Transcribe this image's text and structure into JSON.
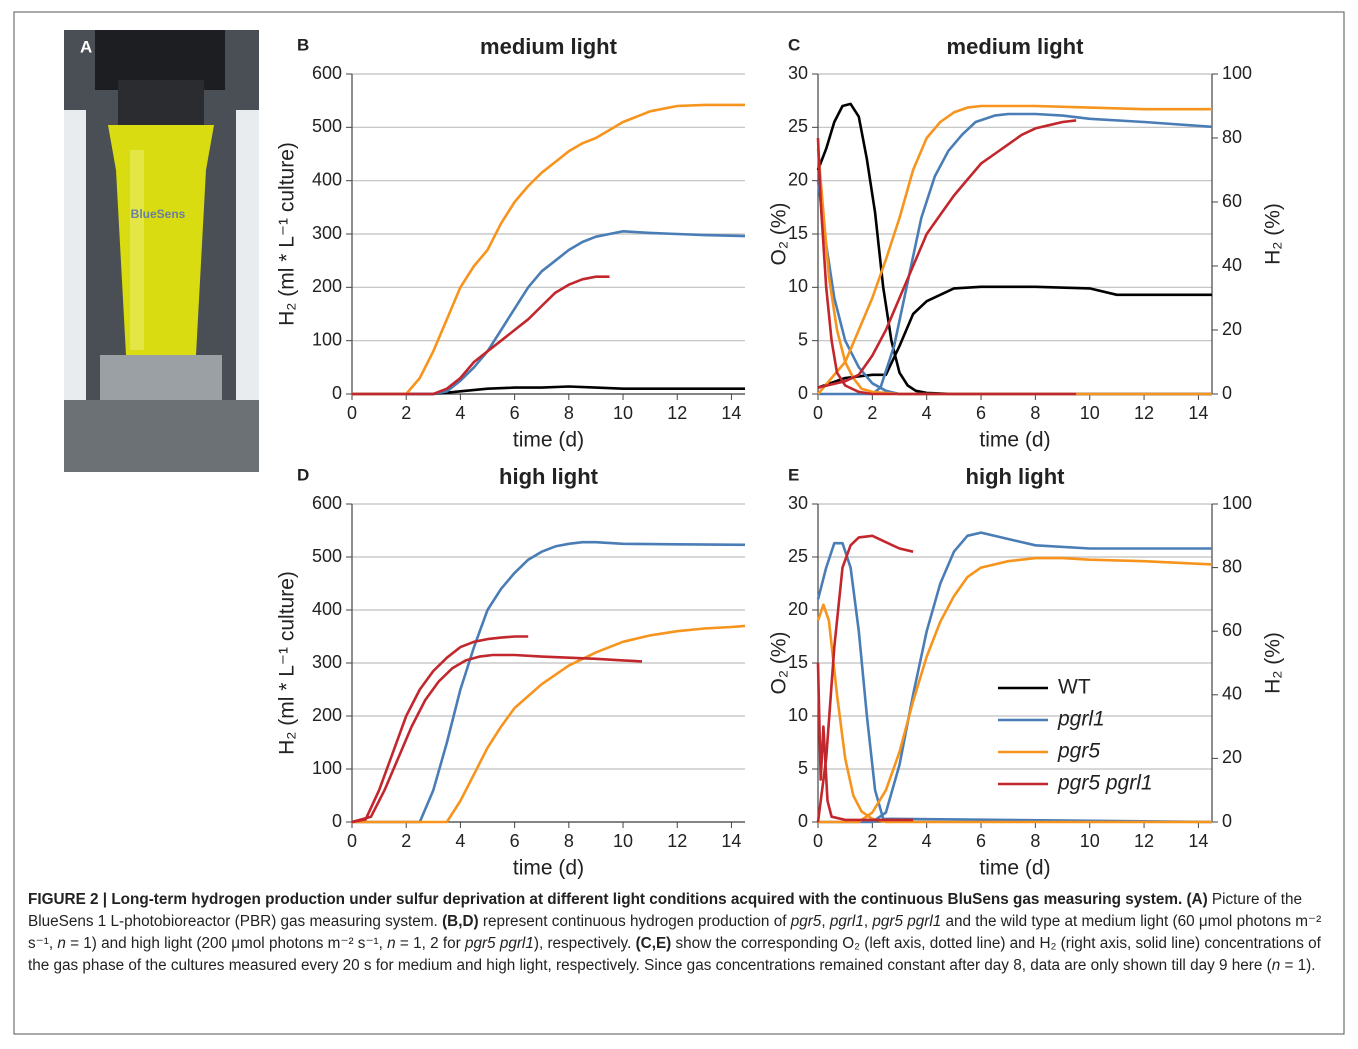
{
  "figure": {
    "panel_a": {
      "label": "A",
      "bottle_text": "BlueSens"
    },
    "caption": [
      {
        "text": "FIGURE 2 | Long-term hydrogen production under sulfur deprivation at different light conditions acquired with the continuous BluSens gas measuring system. (A)",
        "style": "bold"
      },
      {
        "text": " Picture of the BlueSens 1 L-photobioreactor (PBR) gas measuring system. ",
        "style": "normal"
      },
      {
        "text": "(B,D)",
        "style": "bold"
      },
      {
        "text": " represent continuous hydrogen production of ",
        "style": "normal"
      },
      {
        "text": "pgr5",
        "style": "italic"
      },
      {
        "text": ", ",
        "style": "normal"
      },
      {
        "text": "pgrl1",
        "style": "italic"
      },
      {
        "text": ", ",
        "style": "normal"
      },
      {
        "text": "pgr5 pgrl1",
        "style": "italic"
      },
      {
        "text": " and the wild type at medium light (60 μmol photons m⁻² s⁻¹, ",
        "style": "normal"
      },
      {
        "text": "n",
        "style": "italic"
      },
      {
        "text": " = 1) and high light (200 μmol photons m⁻² s⁻¹, ",
        "style": "normal"
      },
      {
        "text": "n",
        "style": "italic"
      },
      {
        "text": " = 1, 2 for ",
        "style": "normal"
      },
      {
        "text": "pgr5 pgrl1",
        "style": "italic"
      },
      {
        "text": "), respectively. ",
        "style": "normal"
      },
      {
        "text": "(C,E)",
        "style": "bold"
      },
      {
        "text": " show the corresponding O₂ (left axis, dotted line) and H₂ (right axis, solid line) concentrations of the gas phase of the cultures measured every 20 s for medium and high light, respectively. Since gas concentrations remained constant after day 8, data are only shown till day 9 here (",
        "style": "normal"
      },
      {
        "text": "n",
        "style": "italic"
      },
      {
        "text": " = 1).",
        "style": "normal"
      }
    ]
  },
  "chart_data": [
    {
      "type": "line",
      "panel_label": "B",
      "title": "medium light",
      "xlabel": "time (d)",
      "ylabel": "H₂ (ml * L⁻¹ culture)",
      "xlim": [
        0,
        14.5
      ],
      "xticks": [
        0,
        2,
        4,
        6,
        8,
        10,
        12,
        14
      ],
      "ylim": [
        0,
        600
      ],
      "yticks": [
        0,
        100,
        200,
        300,
        400,
        500,
        600
      ],
      "grid": true,
      "series": [
        {
          "color": "#000000",
          "x": [
            0,
            3,
            4,
            5,
            6,
            7,
            8,
            9,
            10,
            12,
            14.5
          ],
          "values": [
            0,
            0,
            5,
            10,
            12,
            12,
            14,
            12,
            10,
            10,
            10
          ]
        },
        {
          "color": "#4a7db6",
          "x": [
            0,
            3,
            3.5,
            4,
            4.5,
            5,
            5.5,
            6,
            6.5,
            7,
            7.5,
            8,
            8.5,
            9,
            9.5,
            10,
            11,
            12,
            13,
            14.5
          ],
          "values": [
            0,
            0,
            5,
            25,
            50,
            80,
            120,
            160,
            200,
            230,
            250,
            270,
            285,
            295,
            300,
            305,
            302,
            300,
            298,
            296
          ]
        },
        {
          "color": "#f7941d",
          "x": [
            0,
            2,
            2.5,
            3,
            3.5,
            4,
            4.5,
            5,
            5.5,
            6,
            6.5,
            7,
            7.5,
            8,
            8.5,
            9,
            9.5,
            10,
            10.5,
            11,
            12,
            13,
            14.5
          ],
          "values": [
            0,
            0,
            30,
            80,
            140,
            200,
            240,
            270,
            320,
            360,
            390,
            415,
            435,
            455,
            470,
            480,
            495,
            510,
            520,
            530,
            540,
            542,
            542
          ]
        },
        {
          "color": "#c1272d",
          "x": [
            0,
            3,
            3.5,
            4,
            4.5,
            5,
            5.5,
            6,
            6.5,
            7,
            7.5,
            8,
            8.5,
            9,
            9.5
          ],
          "values": [
            0,
            0,
            10,
            30,
            60,
            80,
            100,
            120,
            140,
            165,
            190,
            205,
            215,
            220,
            220
          ]
        }
      ]
    },
    {
      "type": "line",
      "panel_label": "C",
      "title": "medium light",
      "xlabel": "time (d)",
      "ylabel": "O₂ (%)",
      "y2label": "H₂ (%)",
      "xlim": [
        0,
        14.5
      ],
      "xticks": [
        0,
        2,
        4,
        6,
        8,
        10,
        12,
        14
      ],
      "ylim": [
        0,
        30
      ],
      "yticks": [
        0,
        5,
        10,
        15,
        20,
        25,
        30
      ],
      "y2lim": [
        0,
        100
      ],
      "y2ticks": [
        0,
        20,
        40,
        60,
        80,
        100
      ],
      "grid": true,
      "series": [
        {
          "color": "#000000",
          "x": [
            0,
            0.3,
            0.6,
            0.9,
            1.2,
            1.5,
            1.8,
            2.1,
            2.4,
            2.7,
            3,
            3.3,
            3.6,
            4,
            5,
            14.5
          ],
          "values": [
            21,
            23,
            25.5,
            27,
            27.2,
            26,
            22,
            17,
            10,
            5,
            2,
            0.8,
            0.3,
            0.1,
            0,
            0
          ]
        },
        {
          "color": "#000000",
          "axis": "y2",
          "x": [
            0,
            1,
            2,
            2.5,
            3,
            3.5,
            4,
            5,
            6,
            8,
            10,
            11,
            12,
            14.5
          ],
          "values": [
            2,
            5,
            6,
            6,
            15,
            25,
            29,
            33,
            33.5,
            33.5,
            33,
            31,
            31,
            31
          ]
        },
        {
          "color": "#4a7db6",
          "x": [
            0,
            0.3,
            0.6,
            1,
            1.5,
            2,
            2.5,
            3,
            14.5
          ],
          "values": [
            20,
            14,
            9,
            5,
            2.5,
            1,
            0.3,
            0,
            0
          ]
        },
        {
          "color": "#4a7db6",
          "axis": "y2",
          "x": [
            0,
            1,
            2,
            2.3,
            2.8,
            3.3,
            3.8,
            4.3,
            4.8,
            5.3,
            5.8,
            6.5,
            7,
            8,
            9,
            10,
            12,
            14.5
          ],
          "values": [
            0,
            0,
            0,
            2,
            15,
            35,
            55,
            68,
            76,
            81,
            85,
            87,
            87.5,
            87.5,
            87,
            86,
            85,
            83.5
          ]
        },
        {
          "color": "#f7941d",
          "x": [
            0,
            0.2,
            0.4,
            0.7,
            1,
            1.3,
            1.6,
            2,
            3,
            14.5
          ],
          "values": [
            23,
            17,
            11,
            6,
            3,
            1.5,
            0.5,
            0.2,
            0,
            0
          ]
        },
        {
          "color": "#f7941d",
          "axis": "y2",
          "x": [
            0,
            0.5,
            1,
            1.5,
            2,
            2.5,
            3,
            3.5,
            4,
            4.5,
            5,
            5.5,
            6,
            8,
            10,
            12,
            14.5
          ],
          "values": [
            0,
            5,
            10,
            20,
            30,
            42,
            55,
            70,
            80,
            85,
            88,
            89.5,
            90,
            90,
            89.5,
            89,
            89
          ]
        },
        {
          "color": "#c1272d",
          "x": [
            0,
            0.1,
            0.3,
            0.5,
            0.7,
            1,
            1.5,
            2,
            9.5
          ],
          "values": [
            24,
            18,
            10,
            5,
            2,
            0.8,
            0.2,
            0,
            0
          ]
        },
        {
          "color": "#c1272d",
          "axis": "y2",
          "x": [
            0,
            1,
            1.5,
            2,
            2.5,
            3,
            3.5,
            4,
            4.5,
            5,
            5.5,
            6,
            6.5,
            7,
            7.5,
            8,
            8.5,
            9,
            9.5
          ],
          "values": [
            2,
            4,
            6,
            12,
            20,
            30,
            40,
            50,
            56,
            62,
            67,
            72,
            75,
            78,
            81,
            83,
            84,
            85,
            85.5
          ]
        }
      ]
    },
    {
      "type": "line",
      "panel_label": "D",
      "title": "high light",
      "xlabel": "time (d)",
      "ylabel": "H₂ (ml * L⁻¹ culture)",
      "xlim": [
        0,
        14.5
      ],
      "xticks": [
        0,
        2,
        4,
        6,
        8,
        10,
        12,
        14
      ],
      "ylim": [
        0,
        600
      ],
      "yticks": [
        0,
        100,
        200,
        300,
        400,
        500,
        600
      ],
      "grid": true,
      "series": [
        {
          "color": "#4a7db6",
          "x": [
            0,
            2.5,
            3,
            3.5,
            4,
            4.5,
            5,
            5.5,
            6,
            6.5,
            7,
            7.5,
            8,
            8.5,
            9,
            10,
            12,
            14.5
          ],
          "values": [
            0,
            0,
            60,
            150,
            250,
            330,
            400,
            440,
            470,
            495,
            510,
            520,
            525,
            528,
            528,
            525,
            524,
            523
          ]
        },
        {
          "color": "#f7941d",
          "x": [
            0,
            3.5,
            4,
            4.5,
            5,
            5.5,
            6,
            7,
            8,
            9,
            10,
            11,
            12,
            13,
            14,
            14.5
          ],
          "values": [
            0,
            0,
            40,
            90,
            140,
            180,
            215,
            260,
            295,
            320,
            340,
            352,
            360,
            365,
            368,
            370
          ]
        },
        {
          "color": "#c1272d",
          "x": [
            0,
            0.5,
            1,
            1.5,
            2,
            2.5,
            3,
            3.5,
            4,
            4.5,
            5,
            5.5,
            6,
            6.5
          ],
          "values": [
            0,
            5,
            60,
            130,
            200,
            250,
            285,
            310,
            330,
            340,
            345,
            348,
            350,
            350
          ]
        },
        {
          "color": "#c1272d",
          "x": [
            0,
            0.7,
            1.2,
            1.7,
            2.2,
            2.7,
            3.2,
            3.7,
            4.2,
            4.7,
            5.2,
            6,
            7,
            8,
            9,
            10,
            10.7
          ],
          "values": [
            0,
            10,
            60,
            120,
            180,
            230,
            265,
            290,
            305,
            312,
            315,
            315,
            312,
            310,
            308,
            305,
            303
          ]
        }
      ]
    },
    {
      "type": "line",
      "panel_label": "E",
      "title": "high light",
      "xlabel": "time (d)",
      "ylabel": "O₂ (%)",
      "y2label": "H₂ (%)",
      "xlim": [
        0,
        14.5
      ],
      "xticks": [
        0,
        2,
        4,
        6,
        8,
        10,
        12,
        14
      ],
      "ylim": [
        0,
        30
      ],
      "yticks": [
        0,
        5,
        10,
        15,
        20,
        25,
        30
      ],
      "y2lim": [
        0,
        100
      ],
      "y2ticks": [
        0,
        20,
        40,
        60,
        80,
        100
      ],
      "grid": true,
      "legend": [
        {
          "name": "WT",
          "color": "#000000",
          "style": "normal"
        },
        {
          "name": "pgrl1",
          "color": "#4a7db6",
          "style": "italic"
        },
        {
          "name": "pgr5",
          "color": "#f7941d",
          "style": "italic"
        },
        {
          "name": "pgr5 pgrl1",
          "color": "#c1272d",
          "style": "italic"
        }
      ],
      "series": [
        {
          "color": "#4a7db6",
          "x": [
            0,
            0.3,
            0.6,
            0.9,
            1.2,
            1.5,
            1.8,
            2.1,
            2.4,
            14.5
          ],
          "values": [
            21,
            24,
            26.3,
            26.3,
            24,
            18,
            10,
            3,
            0.3,
            0
          ]
        },
        {
          "color": "#4a7db6",
          "axis": "y2",
          "x": [
            0,
            2,
            2.5,
            3,
            3.5,
            4,
            4.5,
            5,
            5.5,
            6,
            7,
            8,
            10,
            12,
            14.5
          ],
          "values": [
            0,
            0,
            3,
            18,
            40,
            60,
            75,
            85,
            90,
            91,
            89,
            87,
            86,
            86,
            86
          ]
        },
        {
          "color": "#f7941d",
          "x": [
            0,
            0.2,
            0.4,
            0.7,
            1,
            1.3,
            1.6,
            2,
            2.5,
            14.5
          ],
          "values": [
            19,
            20.5,
            19,
            12,
            6,
            2.5,
            1,
            0.3,
            0,
            0
          ]
        },
        {
          "color": "#f7941d",
          "axis": "y2",
          "x": [
            0,
            1.5,
            2,
            2.5,
            3,
            3.5,
            4,
            4.5,
            5,
            5.5,
            6,
            7,
            8,
            9,
            10,
            12,
            14.5
          ],
          "values": [
            0,
            0,
            3,
            10,
            22,
            38,
            52,
            63,
            71,
            77,
            80,
            82,
            83,
            83,
            82.5,
            82,
            81
          ]
        },
        {
          "color": "#c1272d",
          "x": [
            0,
            0.1,
            0.2,
            0.35,
            0.5,
            1,
            3.5
          ],
          "values": [
            15,
            4,
            9,
            2,
            0.5,
            0.2,
            0.2
          ]
        },
        {
          "color": "#c1272d",
          "axis": "y2",
          "x": [
            0,
            0.3,
            0.6,
            0.9,
            1.2,
            1.5,
            2,
            2.5,
            3,
            3.5
          ],
          "values": [
            0,
            20,
            55,
            80,
            87,
            89.5,
            90,
            88,
            86,
            85
          ]
        }
      ]
    }
  ]
}
